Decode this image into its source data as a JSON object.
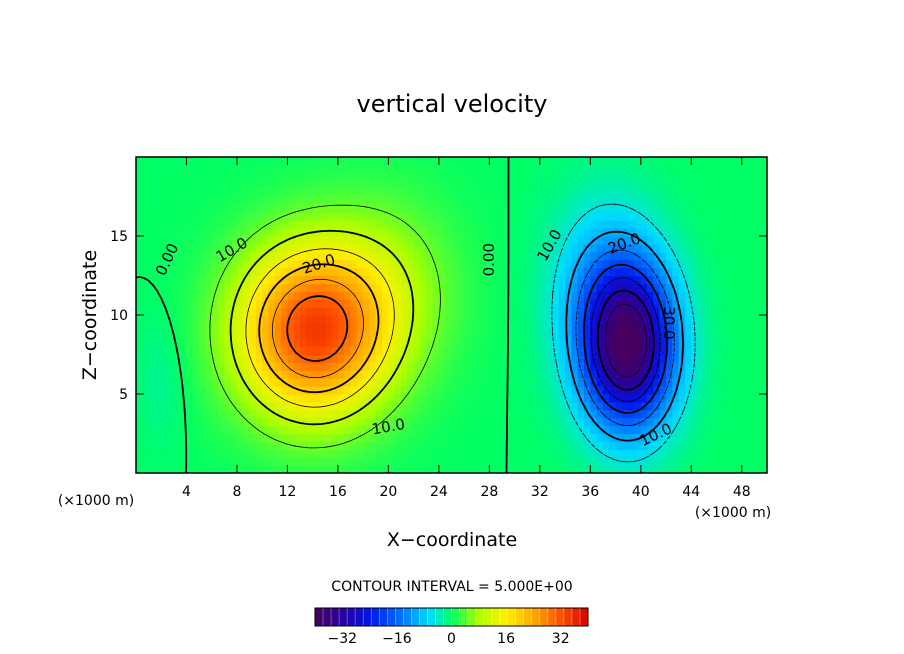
{
  "chart_data": {
    "type": "heatmap",
    "title": "vertical velocity",
    "xlabel": "X−coordinate",
    "ylabel": "Z−coordinate",
    "x_unit": "(×1000 m)",
    "y_unit": "(×1000 m)",
    "xlim": [
      0,
      50
    ],
    "ylim": [
      0,
      20
    ],
    "xticks": [
      4,
      8,
      12,
      16,
      20,
      24,
      28,
      32,
      36,
      40,
      44,
      48
    ],
    "yticks": [
      5,
      10,
      15
    ],
    "contour_interval_label": "CONTOUR INTERVAL = 5.000E+00",
    "contour_interval": 5.0,
    "field": {
      "updraft": {
        "center_x": 14,
        "center_z": 9,
        "peak": 33
      },
      "downdraft": {
        "center_x": 39,
        "center_z": 8,
        "peak": -38
      },
      "zero_line_x": 28
    },
    "contour_labels": [
      {
        "text": "0.00",
        "x": 2.5,
        "z": 13.5,
        "angle": -65
      },
      {
        "text": "10.0",
        "x": 7.6,
        "z": 14.1,
        "angle": -30
      },
      {
        "text": "20.0",
        "x": 14.5,
        "z": 13.2,
        "angle": -18
      },
      {
        "text": "10.0",
        "x": 20.0,
        "z": 2.9,
        "angle": -10
      },
      {
        "text": "0.00",
        "x": 28.0,
        "z": 13.5,
        "angle": -90
      },
      {
        "text": "10.0",
        "x": 32.8,
        "z": 14.4,
        "angle": -60
      },
      {
        "text": "20.0",
        "x": 38.7,
        "z": 14.5,
        "angle": -20
      },
      {
        "text": "30.0",
        "x": 42.2,
        "z": 9.5,
        "angle": 90
      },
      {
        "text": "10.0",
        "x": 41.2,
        "z": 2.4,
        "angle": -25
      }
    ],
    "colorbar": {
      "range": [
        -40,
        40
      ],
      "ticks": [
        -32,
        -16,
        0,
        16,
        32
      ],
      "tick_labels": [
        "−32",
        "−16",
        "0",
        "16",
        "32"
      ]
    }
  }
}
